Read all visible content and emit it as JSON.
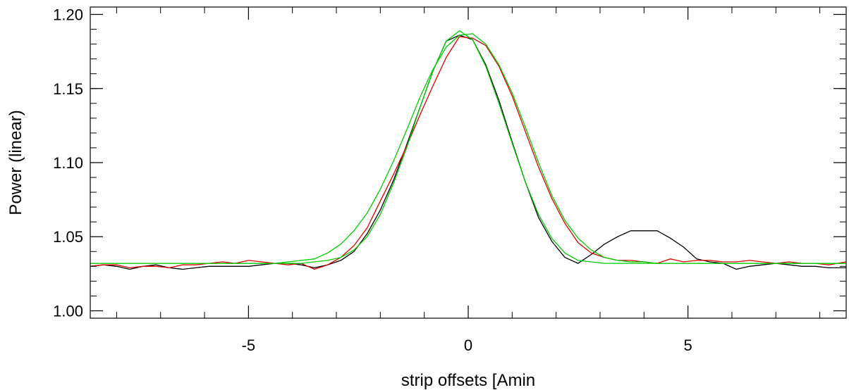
{
  "chart_data": {
    "type": "line",
    "title": "",
    "xlabel": "strip offsets [Amin",
    "ylabel": "Power (linear)",
    "xlim": [
      -8.6,
      8.6
    ],
    "ylim": [
      0.995,
      1.205
    ],
    "x_ticks": [
      -5,
      0,
      5
    ],
    "x_tick_labels": [
      "-5",
      "0",
      "5"
    ],
    "y_ticks": [
      1.0,
      1.05,
      1.1,
      1.15,
      1.2
    ],
    "y_tick_labels": [
      "1.00",
      "1.05",
      "1.10",
      "1.15",
      "1.20"
    ],
    "grid": false,
    "legend": "none",
    "series": [
      {
        "color": "#000000",
        "x": [
          -8.6,
          -8.3,
          -8.0,
          -7.7,
          -7.4,
          -7.1,
          -6.8,
          -6.5,
          -6.2,
          -5.9,
          -5.6,
          -5.3,
          -5.0,
          -4.7,
          -4.4,
          -4.1,
          -3.8,
          -3.5,
          -3.2,
          -2.9,
          -2.6,
          -2.3,
          -2.0,
          -1.7,
          -1.4,
          -1.1,
          -0.8,
          -0.5,
          -0.2,
          0.1,
          0.4,
          0.7,
          1.0,
          1.3,
          1.6,
          1.9,
          2.2,
          2.5,
          2.8,
          3.1,
          3.4,
          3.7,
          4.0,
          4.3,
          4.6,
          4.9,
          5.2,
          5.5,
          5.8,
          6.1,
          6.4,
          6.7,
          7.0,
          7.3,
          7.6,
          7.9,
          8.2,
          8.6
        ],
        "y": [
          1.03,
          1.031,
          1.03,
          1.028,
          1.03,
          1.031,
          1.029,
          1.028,
          1.029,
          1.03,
          1.03,
          1.03,
          1.03,
          1.031,
          1.032,
          1.032,
          1.031,
          1.029,
          1.031,
          1.034,
          1.04,
          1.052,
          1.068,
          1.088,
          1.112,
          1.137,
          1.162,
          1.182,
          1.186,
          1.183,
          1.166,
          1.142,
          1.114,
          1.087,
          1.063,
          1.047,
          1.036,
          1.032,
          1.038,
          1.045,
          1.05,
          1.054,
          1.054,
          1.054,
          1.049,
          1.043,
          1.035,
          1.033,
          1.032,
          1.028,
          1.03,
          1.031,
          1.032,
          1.031,
          1.03,
          1.03,
          1.029,
          1.029
        ]
      },
      {
        "color": "#dd0000",
        "x": [
          -8.6,
          -8.3,
          -8.0,
          -7.7,
          -7.4,
          -7.1,
          -6.8,
          -6.5,
          -6.2,
          -5.9,
          -5.6,
          -5.3,
          -5.0,
          -4.7,
          -4.4,
          -4.1,
          -3.8,
          -3.5,
          -3.2,
          -2.9,
          -2.6,
          -2.3,
          -2.0,
          -1.7,
          -1.4,
          -1.1,
          -0.8,
          -0.5,
          -0.2,
          0.1,
          0.4,
          0.7,
          1.0,
          1.3,
          1.6,
          1.9,
          2.2,
          2.5,
          2.8,
          3.1,
          3.4,
          3.7,
          4.0,
          4.3,
          4.6,
          4.9,
          5.2,
          5.5,
          5.8,
          6.1,
          6.4,
          6.7,
          7.0,
          7.3,
          7.6,
          7.9,
          8.2,
          8.6
        ],
        "y": [
          1.03,
          1.031,
          1.031,
          1.029,
          1.03,
          1.03,
          1.029,
          1.031,
          1.031,
          1.032,
          1.033,
          1.032,
          1.034,
          1.033,
          1.032,
          1.031,
          1.032,
          1.028,
          1.031,
          1.036,
          1.044,
          1.056,
          1.074,
          1.092,
          1.111,
          1.132,
          1.152,
          1.171,
          1.185,
          1.184,
          1.179,
          1.165,
          1.145,
          1.121,
          1.097,
          1.076,
          1.059,
          1.046,
          1.039,
          1.036,
          1.034,
          1.034,
          1.033,
          1.032,
          1.035,
          1.033,
          1.034,
          1.034,
          1.033,
          1.033,
          1.034,
          1.033,
          1.032,
          1.033,
          1.032,
          1.032,
          1.031,
          1.033
        ]
      },
      {
        "color": "#00cc00",
        "x": [
          -8.6,
          -8.3,
          -8.0,
          -7.7,
          -7.4,
          -7.1,
          -6.8,
          -6.5,
          -6.2,
          -5.9,
          -5.6,
          -5.3,
          -5.0,
          -4.7,
          -4.4,
          -4.1,
          -3.8,
          -3.5,
          -3.2,
          -2.9,
          -2.6,
          -2.3,
          -2.0,
          -1.7,
          -1.4,
          -1.1,
          -0.8,
          -0.5,
          -0.2,
          0.1,
          0.4,
          0.7,
          1.0,
          1.3,
          1.6,
          1.9,
          2.2,
          2.5,
          2.8,
          3.1,
          3.4,
          3.7,
          4.0,
          4.3,
          4.6,
          4.9,
          5.2,
          5.5,
          5.8,
          6.1,
          6.4,
          6.7,
          7.0,
          7.3,
          7.6,
          7.9,
          8.2,
          8.6
        ],
        "y": [
          1.032,
          1.032,
          1.032,
          1.032,
          1.032,
          1.032,
          1.032,
          1.032,
          1.032,
          1.032,
          1.032,
          1.032,
          1.032,
          1.032,
          1.032,
          1.032,
          1.032,
          1.033,
          1.034,
          1.036,
          1.041,
          1.05,
          1.065,
          1.086,
          1.11,
          1.137,
          1.162,
          1.182,
          1.189,
          1.183,
          1.165,
          1.14,
          1.113,
          1.087,
          1.065,
          1.049,
          1.039,
          1.034,
          1.033,
          1.032,
          1.032,
          1.032,
          1.032,
          1.032,
          1.032,
          1.032,
          1.032,
          1.032,
          1.032,
          1.032,
          1.032,
          1.032,
          1.032,
          1.032,
          1.032,
          1.032,
          1.032,
          1.032
        ]
      },
      {
        "color": "#00cc00",
        "x": [
          -8.6,
          -8.3,
          -8.0,
          -7.7,
          -7.4,
          -7.1,
          -6.8,
          -6.5,
          -6.2,
          -5.9,
          -5.6,
          -5.3,
          -5.0,
          -4.7,
          -4.4,
          -4.1,
          -3.8,
          -3.5,
          -3.2,
          -2.9,
          -2.6,
          -2.3,
          -2.0,
          -1.7,
          -1.4,
          -1.1,
          -0.8,
          -0.5,
          -0.2,
          0.1,
          0.4,
          0.7,
          1.0,
          1.3,
          1.6,
          1.9,
          2.2,
          2.5,
          2.8,
          3.1,
          3.4,
          3.7,
          4.0,
          4.3,
          4.6,
          4.9,
          5.2,
          5.5,
          5.8,
          6.1,
          6.4,
          6.7,
          7.0,
          7.3,
          7.6,
          7.9,
          8.2,
          8.6
        ],
        "y": [
          1.032,
          1.032,
          1.032,
          1.032,
          1.032,
          1.032,
          1.032,
          1.032,
          1.032,
          1.032,
          1.032,
          1.032,
          1.032,
          1.032,
          1.032,
          1.033,
          1.034,
          1.035,
          1.039,
          1.045,
          1.054,
          1.066,
          1.082,
          1.101,
          1.122,
          1.144,
          1.163,
          1.178,
          1.186,
          1.187,
          1.18,
          1.166,
          1.147,
          1.124,
          1.1,
          1.078,
          1.061,
          1.049,
          1.041,
          1.036,
          1.034,
          1.033,
          1.033,
          1.032,
          1.032,
          1.032,
          1.032,
          1.032,
          1.032,
          1.032,
          1.032,
          1.032,
          1.032,
          1.032,
          1.032,
          1.032,
          1.032,
          1.032
        ]
      }
    ]
  }
}
